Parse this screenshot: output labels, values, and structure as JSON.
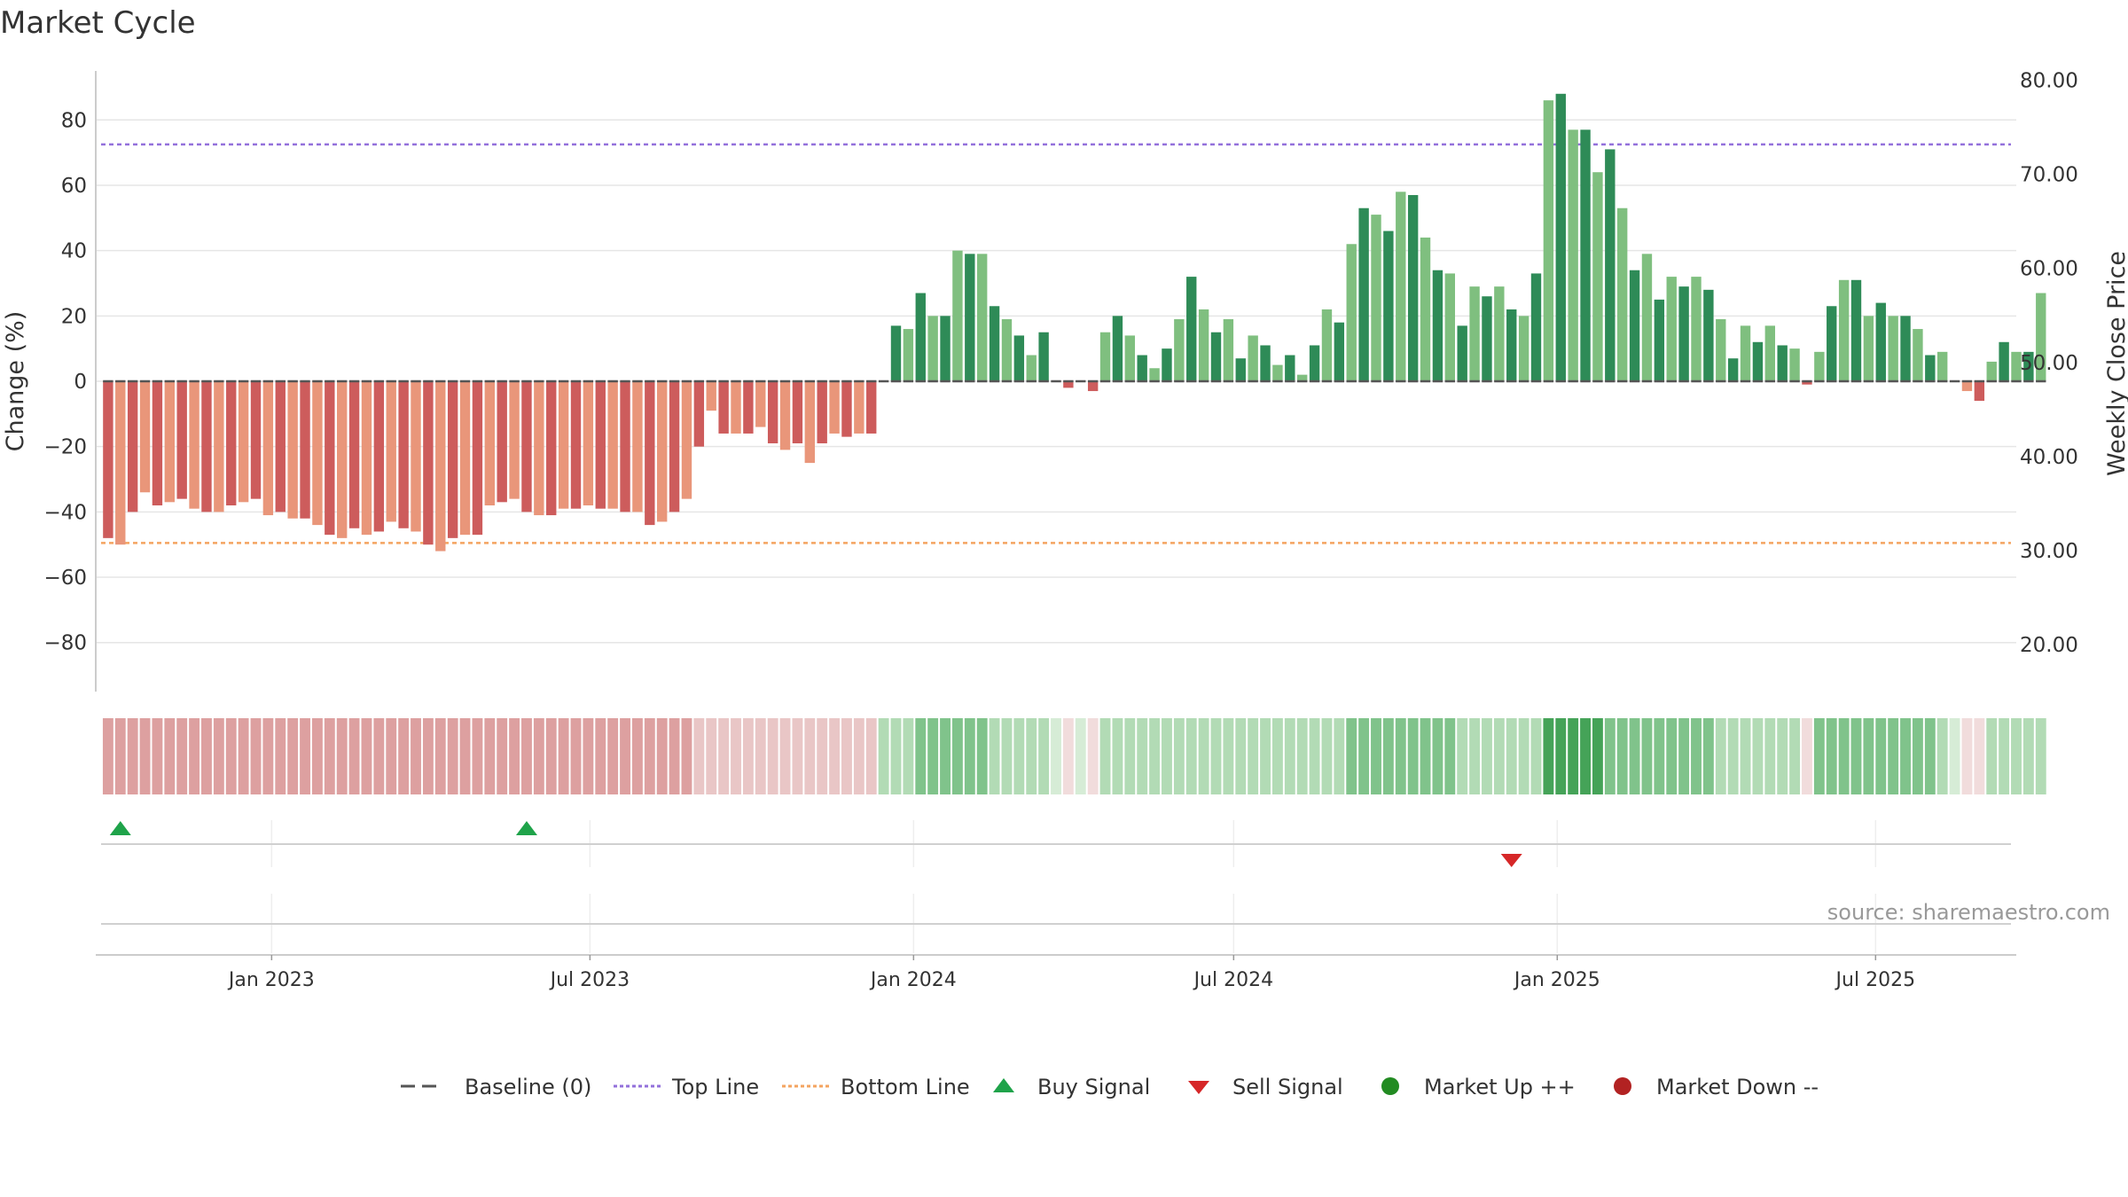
{
  "title": "Market Cycle",
  "source": "source: sharemaestro.com",
  "colors": {
    "bar_dark_green": "#2e8b57",
    "bar_light_green": "#7fbf7f",
    "bar_dark_red": "#cd5c5c",
    "bar_light_red": "#e9967a",
    "top_line": "#9370db",
    "bottom_line": "#f4a460",
    "baseline": "#555555",
    "buy": "#1fa34a",
    "sell": "#d62728",
    "market_up": "#228b22",
    "market_down": "#b22222",
    "grid": "#e6e6e6"
  },
  "legend": [
    {
      "label": "Baseline (0)",
      "icon": "dash-line-icon",
      "color": "#555555"
    },
    {
      "label": "Top Line",
      "icon": "dotted-purple-line-icon",
      "color": "#9370db"
    },
    {
      "label": "Bottom Line",
      "icon": "dotted-orange-line-icon",
      "color": "#f4a460"
    },
    {
      "label": "Buy Signal",
      "icon": "triangle-up-icon",
      "color": "#1fa34a"
    },
    {
      "label": "Sell Signal",
      "icon": "triangle-down-icon",
      "color": "#d62728"
    },
    {
      "label": "Market Up ++",
      "icon": "circle-icon",
      "color": "#228b22"
    },
    {
      "label": "Market Down --",
      "icon": "circle-icon",
      "color": "#b22222"
    }
  ],
  "chart_data": {
    "type": "bar",
    "ylabel": "Change (%)",
    "y2label": "Weekly Close Price",
    "ylim": [
      -95,
      95
    ],
    "yticks": [
      80,
      60,
      40,
      20,
      0,
      -20,
      -40,
      -60,
      -80
    ],
    "ytick_labels": [
      "80",
      "60",
      "40",
      "20",
      "0",
      "−20",
      "−40",
      "−60",
      "−80"
    ],
    "y2lim": [
      15,
      81
    ],
    "y2ticks": [
      80,
      70,
      60,
      50,
      40,
      30,
      20
    ],
    "y2tick_labels": [
      "80.00",
      "70.00",
      "60.00",
      "50.00",
      "40.00",
      "30.00",
      "20.00"
    ],
    "xlim": [
      "2022-09-23",
      "2025-09-19"
    ],
    "x_ticks": [
      {
        "date": "2023-01-01",
        "label": "Jan 2023"
      },
      {
        "date": "2023-07-01",
        "label": "Jul 2023"
      },
      {
        "date": "2024-01-01",
        "label": "Jan 2024"
      },
      {
        "date": "2024-07-01",
        "label": "Jul 2024"
      },
      {
        "date": "2025-01-01",
        "label": "Jan 2025"
      },
      {
        "date": "2025-07-01",
        "label": "Jul 2025"
      }
    ],
    "start_date": "2022-09-30",
    "interval_days": 7,
    "top_line": 72.5,
    "bottom_line": -49.5,
    "baseline": 0,
    "grid": true,
    "legend_position": "bottom-center",
    "values": [
      -48,
      -50,
      -40,
      -34,
      -38,
      -37,
      -36,
      -39,
      -40,
      -40,
      -38,
      -37,
      -36,
      -41,
      -40,
      -42,
      -42,
      -44,
      -47,
      -48,
      -45,
      -47,
      -46,
      -43,
      -45,
      -46,
      -50,
      -52,
      -48,
      -47,
      -47,
      -38,
      -37,
      -36,
      -40,
      -41,
      -41,
      -39,
      -39,
      -38,
      -39,
      -39,
      -40,
      -40,
      -44,
      -43,
      -40,
      -36,
      -20,
      -9,
      -16,
      -16,
      -16,
      -14,
      -19,
      -21,
      -19,
      -25,
      -19,
      -16,
      -17,
      -16,
      -16,
      0,
      17,
      16,
      27,
      20,
      20,
      40,
      39,
      39,
      23,
      19,
      14,
      8,
      15,
      0,
      -2,
      0,
      -3,
      15,
      20,
      14,
      8,
      4,
      10,
      19,
      32,
      22,
      15,
      19,
      7,
      14,
      11,
      5,
      8,
      2,
      11,
      22,
      18,
      42,
      53,
      51,
      46,
      58,
      57,
      44,
      34,
      33,
      17,
      29,
      26,
      29,
      22,
      20,
      33,
      86,
      88,
      77,
      77,
      64,
      71,
      53,
      34,
      39,
      25,
      32,
      29,
      32,
      28,
      19,
      7,
      17,
      12,
      17,
      11,
      10,
      -1,
      9,
      23,
      31,
      31,
      20,
      24,
      20,
      20,
      16,
      8,
      9,
      0,
      -3,
      -6,
      6,
      12,
      9,
      9,
      27
    ],
    "heat_strength": [
      2,
      2,
      2,
      2,
      2,
      2,
      2,
      2,
      2,
      2,
      2,
      2,
      2,
      2,
      2,
      2,
      2,
      2,
      2,
      2,
      2,
      2,
      2,
      2,
      2,
      2,
      2,
      2,
      2,
      2,
      2,
      2,
      2,
      2,
      2,
      2,
      2,
      2,
      2,
      2,
      2,
      2,
      2,
      2,
      2,
      2,
      2,
      2,
      1,
      1,
      1,
      1,
      1,
      1,
      1,
      1,
      1,
      1,
      1,
      1,
      1,
      1,
      1,
      1,
      1,
      1,
      2,
      2,
      2,
      2,
      2,
      2,
      1,
      1,
      1,
      1,
      1,
      0,
      0,
      0,
      0,
      1,
      1,
      1,
      1,
      1,
      1,
      1,
      1,
      1,
      1,
      1,
      1,
      1,
      1,
      1,
      1,
      1,
      1,
      1,
      1,
      2,
      2,
      2,
      2,
      2,
      2,
      2,
      2,
      2,
      1,
      1,
      1,
      1,
      1,
      1,
      1,
      3,
      3,
      3,
      3,
      3,
      2,
      2,
      2,
      2,
      2,
      2,
      2,
      2,
      2,
      1,
      1,
      1,
      1,
      1,
      1,
      1,
      0,
      2,
      2,
      2,
      2,
      2,
      2,
      2,
      2,
      2,
      2,
      1,
      0,
      0,
      0,
      1,
      1,
      1,
      1,
      1
    ],
    "buy_signals": [
      "2022-10-07",
      "2023-05-26"
    ],
    "sell_signals": [
      "2024-12-06"
    ]
  }
}
